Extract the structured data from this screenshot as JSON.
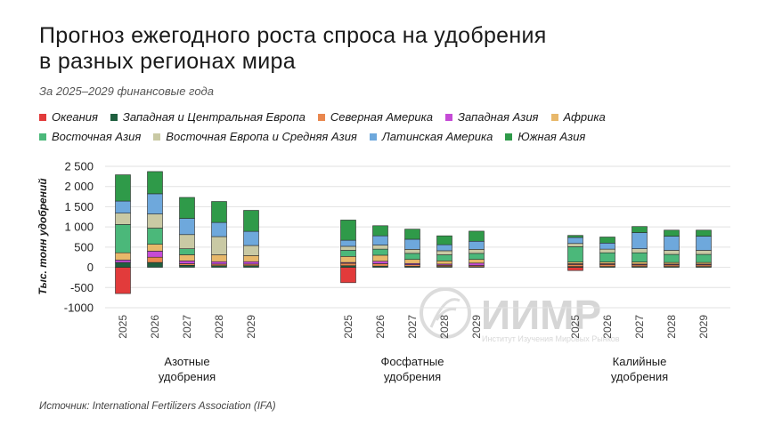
{
  "title": {
    "line1": "Прогноз ежегодного роста спроса на удобрения",
    "line2": "в разных регионах мира"
  },
  "subtitle": "За 2025–2029 финансовые года",
  "source": "Источник: International Fertilizers Association (IFA)",
  "watermark": {
    "logo": "ИИМР",
    "caption": "Институт Изучения Мировых Рынков"
  },
  "legend": [
    {
      "name": "Океания",
      "color": "#e23b3b"
    },
    {
      "name": "Западная и Центральная Европа",
      "color": "#1f5f3f"
    },
    {
      "name": "Северная Америка",
      "color": "#e9874e"
    },
    {
      "name": "Западная Азия",
      "color": "#c54bd6"
    },
    {
      "name": "Африка",
      "color": "#e8b86a"
    },
    {
      "name": "Восточная Азия",
      "color": "#4bb87a"
    },
    {
      "name": "Восточная Европа и Средняя Азия",
      "color": "#c9c9a4"
    },
    {
      "name": "Латинская Америка",
      "color": "#6ea8dc"
    },
    {
      "name": "Южная Азия",
      "color": "#2f9a49"
    }
  ],
  "chart_data": {
    "type": "bar",
    "stacked": true,
    "ylabel": "Тыс. тонн удобрений",
    "ylim": [
      -1000,
      2500
    ],
    "yticks": [
      2500,
      2000,
      1500,
      1000,
      500,
      0,
      -500,
      -1000
    ],
    "ytick_labels": [
      "2 500",
      "2 000",
      "1 500",
      "1 000",
      "500",
      "0",
      "-500",
      "-1000"
    ],
    "grid": true,
    "groups": [
      {
        "label_line1": "Азотные",
        "label_line2": "удобрения",
        "years": [
          "2025",
          "2026",
          "2027",
          "2028",
          "2029"
        ],
        "series": [
          {
            "name": "Океания",
            "values": [
              -650,
              0,
              0,
              0,
              0
            ]
          },
          {
            "name": "Западная и Центральная Европа",
            "values": [
              120,
              120,
              50,
              40,
              40
            ]
          },
          {
            "name": "Северная Америка",
            "values": [
              0,
              130,
              40,
              40,
              40
            ]
          },
          {
            "name": "Западная Азия",
            "values": [
              60,
              150,
              70,
              60,
              60
            ]
          },
          {
            "name": "Африка",
            "values": [
              180,
              170,
              150,
              170,
              150
            ]
          },
          {
            "name": "Восточная Азия",
            "values": [
              700,
              400,
              150,
              0,
              0
            ]
          },
          {
            "name": "Восточная Европа и Средняя Азия",
            "values": [
              280,
              350,
              350,
              450,
              250
            ]
          },
          {
            "name": "Латинская Америка",
            "values": [
              300,
              500,
              400,
              350,
              350
            ]
          },
          {
            "name": "Южная Азия",
            "values": [
              650,
              550,
              520,
              520,
              520
            ]
          }
        ]
      },
      {
        "label_line1": "Фосфатные",
        "label_line2": "удобрения",
        "years": [
          "2025",
          "2026",
          "2027",
          "2028",
          "2029"
        ],
        "series": [
          {
            "name": "Океания",
            "values": [
              -380,
              0,
              0,
              0,
              0
            ]
          },
          {
            "name": "Западная и Центральная Европа",
            "values": [
              40,
              30,
              25,
              20,
              15
            ]
          },
          {
            "name": "Северная Америка",
            "values": [
              60,
              60,
              40,
              30,
              30
            ]
          },
          {
            "name": "Западная Азия",
            "values": [
              20,
              60,
              30,
              30,
              60
            ]
          },
          {
            "name": "Африка",
            "values": [
              150,
              150,
              100,
              80,
              90
            ]
          },
          {
            "name": "Восточная Азия",
            "values": [
              150,
              150,
              150,
              150,
              150
            ]
          },
          {
            "name": "Восточная Европа и Средняя Азия",
            "values": [
              100,
              100,
              100,
              100,
              100
            ]
          },
          {
            "name": "Латинская Америка",
            "values": [
              150,
              230,
              250,
              150,
              200
            ]
          },
          {
            "name": "Южная Азия",
            "values": [
              500,
              250,
              250,
              220,
              250
            ]
          }
        ]
      },
      {
        "label_line1": "Калийные",
        "label_line2": "удобрения",
        "years": [
          "2025",
          "2026",
          "2027",
          "2028",
          "2029"
        ],
        "series": [
          {
            "name": "Океания",
            "values": [
              -80,
              0,
              0,
              0,
              0
            ]
          },
          {
            "name": "Западная и Центральная Европа",
            "values": [
              20,
              20,
              20,
              20,
              20
            ]
          },
          {
            "name": "Северная Америка",
            "values": [
              50,
              50,
              40,
              40,
              40
            ]
          },
          {
            "name": "Западная Азия",
            "values": [
              20,
              20,
              20,
              20,
              20
            ]
          },
          {
            "name": "Африка",
            "values": [
              40,
              40,
              50,
              40,
              40
            ]
          },
          {
            "name": "Восточная Азия",
            "values": [
              380,
              230,
              230,
              200,
              200
            ]
          },
          {
            "name": "Восточная Европа и Средняя Азия",
            "values": [
              80,
              90,
              100,
              100,
              100
            ]
          },
          {
            "name": "Латинская Америка",
            "values": [
              150,
              150,
              400,
              350,
              350
            ]
          },
          {
            "name": "Южная Азия",
            "values": [
              50,
              150,
              150,
              150,
              150
            ]
          }
        ]
      }
    ]
  }
}
